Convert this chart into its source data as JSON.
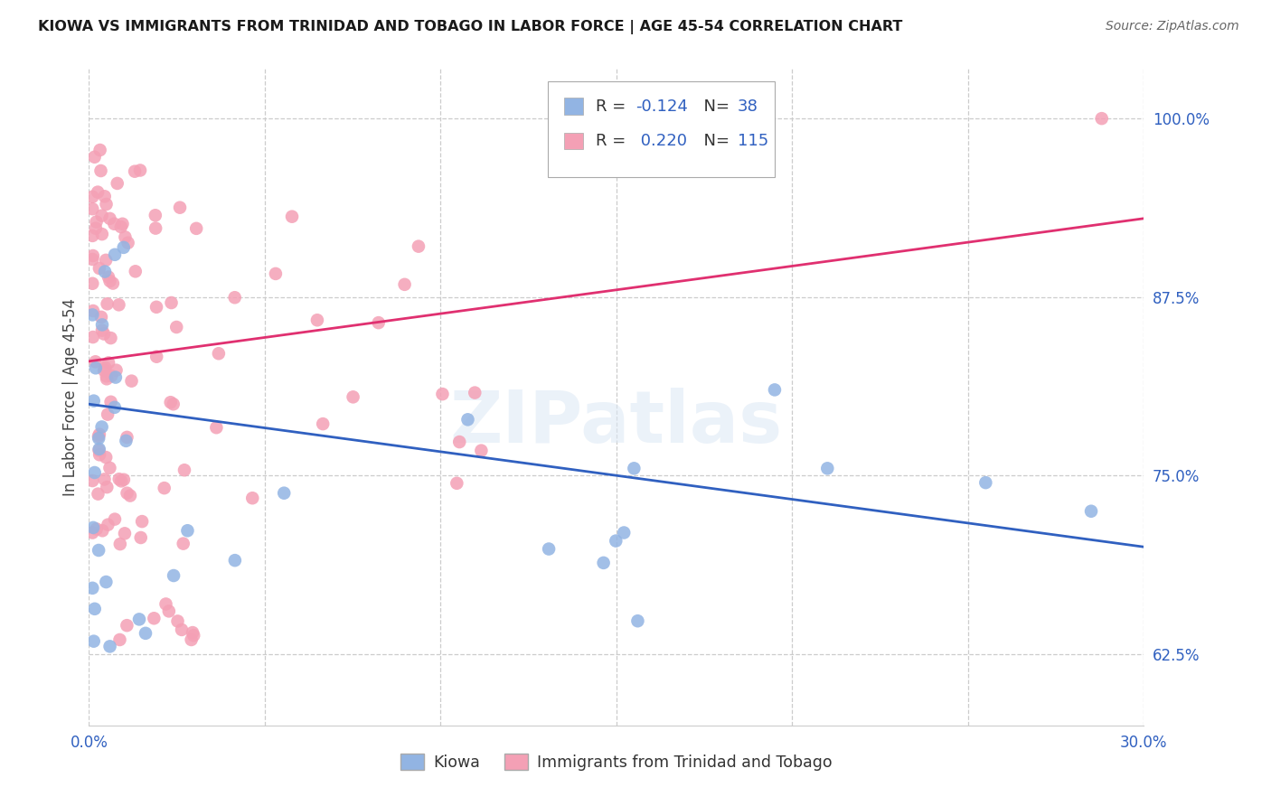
{
  "title": "KIOWA VS IMMIGRANTS FROM TRINIDAD AND TOBAGO IN LABOR FORCE | AGE 45-54 CORRELATION CHART",
  "source": "Source: ZipAtlas.com",
  "ylabel": "In Labor Force | Age 45-54",
  "xlim": [
    0.0,
    0.3
  ],
  "ylim": [
    0.575,
    1.035
  ],
  "yticks": [
    0.625,
    0.75,
    0.875,
    1.0
  ],
  "ytick_labels": [
    "62.5%",
    "75.0%",
    "87.5%",
    "100.0%"
  ],
  "xticks": [
    0.0,
    0.05,
    0.1,
    0.15,
    0.2,
    0.25,
    0.3
  ],
  "xtick_labels": [
    "0.0%",
    "",
    "",
    "",
    "",
    "",
    "30.0%"
  ],
  "kiowa_R": -0.124,
  "kiowa_N": 38,
  "tt_R": 0.22,
  "tt_N": 115,
  "kiowa_color": "#92b4e3",
  "tt_color": "#f4a0b5",
  "kiowa_line_color": "#3060c0",
  "tt_line_color": "#e03070",
  "legend_text_color": "#3060c0",
  "axis_text_color": "#3060c0",
  "watermark": "ZIPatlas",
  "kiowa_line_x0": 0.0,
  "kiowa_line_y0": 0.8,
  "kiowa_line_x1": 0.3,
  "kiowa_line_y1": 0.7,
  "tt_line_x0": 0.0,
  "tt_line_y0": 0.83,
  "tt_line_x1": 0.3,
  "tt_line_y1": 0.93
}
